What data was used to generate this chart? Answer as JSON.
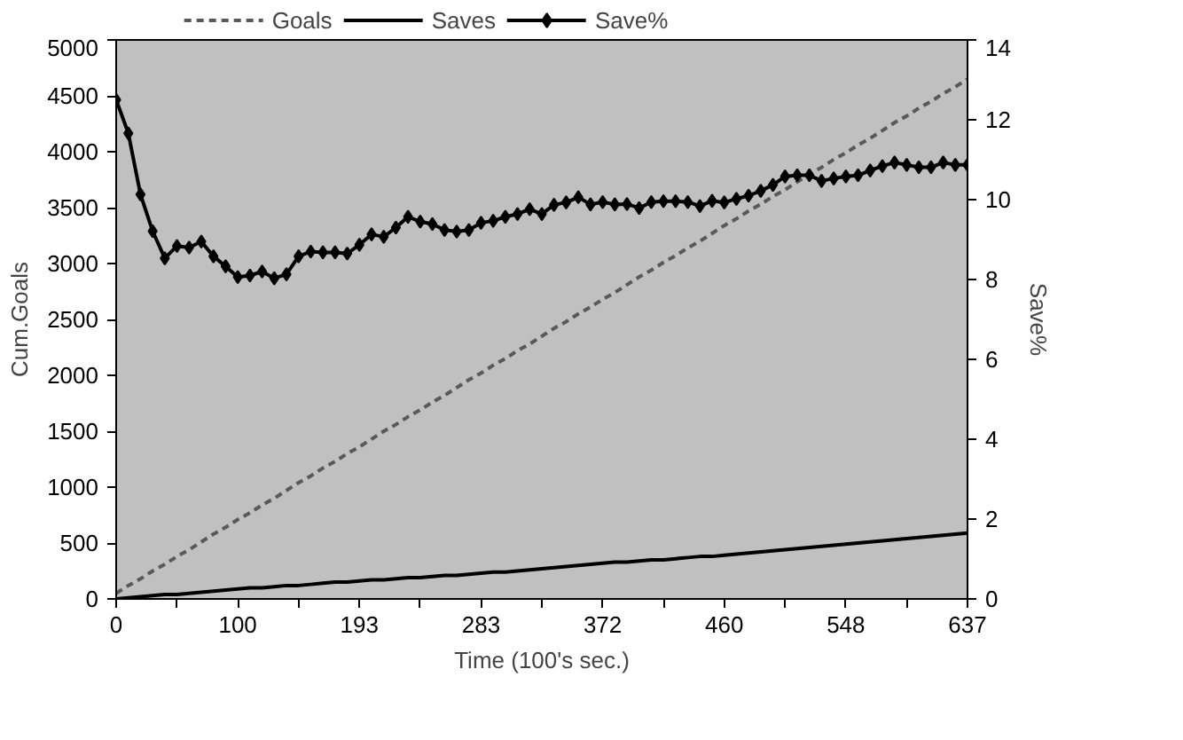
{
  "chart_data": {
    "type": "line",
    "xlabel": "Time (100's sec.)",
    "ylabel": "Cum.Goals",
    "y2label": "Save%",
    "categories": [
      "0",
      null,
      null,
      null,
      null,
      null,
      null,
      null,
      null,
      null,
      "100",
      null,
      null,
      null,
      null,
      null,
      null,
      null,
      null,
      null,
      "193",
      null,
      null,
      null,
      null,
      null,
      null,
      null,
      null,
      null,
      "283",
      null,
      null,
      null,
      null,
      null,
      null,
      null,
      null,
      null,
      "372",
      null,
      null,
      null,
      null,
      null,
      null,
      null,
      null,
      null,
      "460",
      null,
      null,
      null,
      null,
      null,
      null,
      null,
      null,
      null,
      "548",
      null,
      null,
      null,
      null,
      null,
      null,
      null,
      null,
      null,
      "637"
    ],
    "series": [
      {
        "name": "Goals",
        "color": "#595959",
        "line_style": "dashed",
        "marker": "none",
        "values": [
          50,
          120,
          180,
          250,
          310,
          380,
          440,
          510,
          580,
          640,
          710,
          770,
          840,
          900,
          970,
          1040,
          1100,
          1170,
          1230,
          1300,
          1360,
          1430,
          1500,
          1560,
          1630,
          1690,
          1760,
          1820,
          1890,
          1960,
          2020,
          2090,
          2150,
          2220,
          2280,
          2350,
          2420,
          2480,
          2550,
          2610,
          2680,
          2740,
          2810,
          2880,
          2940,
          3010,
          3070,
          3140,
          3200,
          3270,
          3340,
          3400,
          3470,
          3530,
          3600,
          3660,
          3730,
          3800,
          3860,
          3930,
          3990,
          4060,
          4120,
          4190,
          4260,
          4320,
          4390,
          4450,
          4520,
          4580,
          4650
        ]
      },
      {
        "name": "Saves",
        "color": "#000000",
        "line_style": "solid",
        "marker": "none",
        "values": [
          0,
          10,
          20,
          30,
          40,
          40,
          50,
          60,
          70,
          80,
          90,
          100,
          100,
          110,
          120,
          120,
          130,
          140,
          150,
          150,
          160,
          170,
          170,
          180,
          190,
          190,
          200,
          210,
          210,
          220,
          230,
          240,
          240,
          250,
          260,
          270,
          280,
          290,
          300,
          310,
          320,
          330,
          330,
          340,
          350,
          350,
          360,
          370,
          380,
          380,
          390,
          400,
          410,
          420,
          430,
          440,
          450,
          460,
          470,
          480,
          490,
          500,
          510,
          520,
          530,
          540,
          550,
          560,
          570,
          580,
          590
        ]
      },
      {
        "name": "Save%",
        "color": "#000000",
        "line_style": "solid",
        "marker": "diamond",
        "axis": "y2",
        "values": [
          12.5,
          11.66,
          10.13,
          9.21,
          8.53,
          8.84,
          8.8,
          8.95,
          8.58,
          8.33,
          8.06,
          8.1,
          8.2,
          8.03,
          8.13,
          8.58,
          8.7,
          8.68,
          8.68,
          8.65,
          8.87,
          9.13,
          9.07,
          9.3,
          9.57,
          9.45,
          9.39,
          9.24,
          9.2,
          9.24,
          9.42,
          9.47,
          9.57,
          9.64,
          9.76,
          9.64,
          9.87,
          9.93,
          10.06,
          9.88,
          9.94,
          9.88,
          9.89,
          9.79,
          9.94,
          9.96,
          9.96,
          9.94,
          9.84,
          9.97,
          9.93,
          10.02,
          10.1,
          10.22,
          10.37,
          10.58,
          10.61,
          10.61,
          10.47,
          10.53,
          10.58,
          10.61,
          10.73,
          10.84,
          10.93,
          10.87,
          10.81,
          10.81,
          10.93,
          10.87,
          10.87
        ]
      }
    ],
    "ylim": [
      0,
      5000
    ],
    "yticks": [
      0,
      500,
      1000,
      1500,
      2000,
      2500,
      3000,
      3500,
      4000,
      4500,
      5000
    ],
    "y2lim": [
      0,
      14
    ],
    "y2ticks": [
      0,
      2,
      4,
      6,
      8,
      10,
      12,
      14
    ],
    "grid": false,
    "legend": "top"
  }
}
